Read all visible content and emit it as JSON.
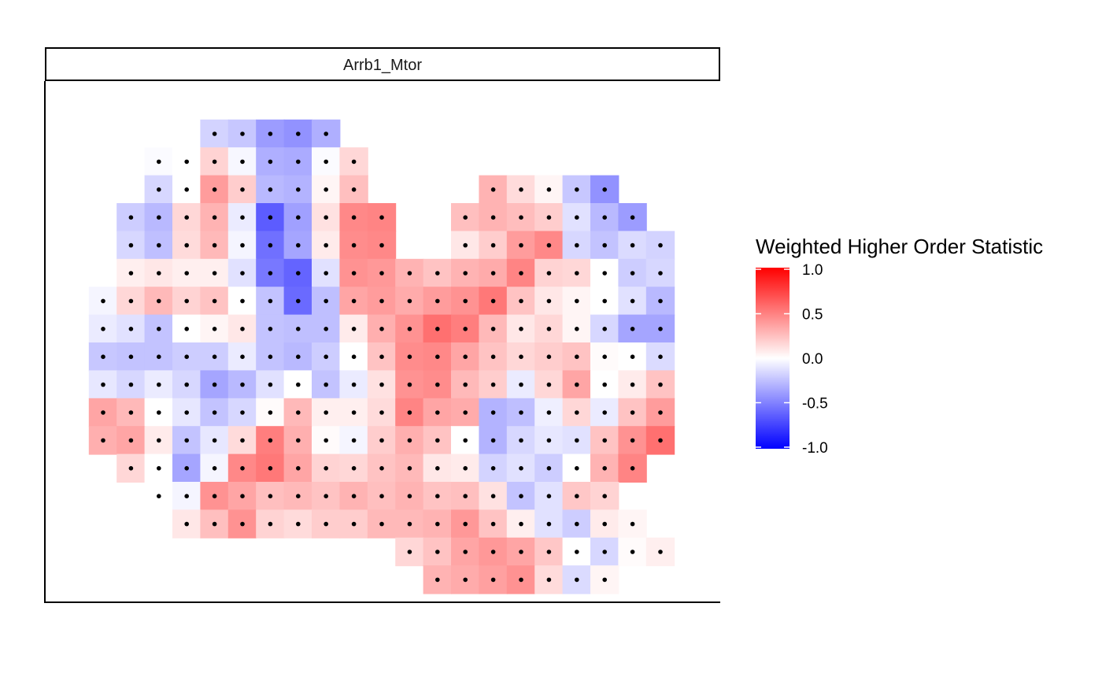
{
  "chart_data": {
    "type": "heatmap",
    "facet_label": "Arrb1_Mtor",
    "legend": {
      "title": "Weighted Higher Order Statistic",
      "ticks": [
        "1.0",
        "0.5",
        "0.0",
        "-0.5",
        "-1.0"
      ],
      "range": [
        -1.0,
        1.0
      ],
      "colors": {
        "low": "#0000FF",
        "mid": "#FFFFFF",
        "high": "#FF0000"
      },
      "placement": "right"
    },
    "grid_note": "Spatial spot map; rows listed top to bottom, each row gives column index (left to right) and value in [-1, 1].",
    "rows": [
      [
        [
          4,
          -0.22
        ],
        [
          5,
          -0.28
        ],
        [
          6,
          -0.5
        ],
        [
          7,
          -0.55
        ],
        [
          8,
          -0.4
        ]
      ],
      [
        [
          2,
          -0.02
        ],
        [
          3,
          0.0
        ],
        [
          4,
          0.22
        ],
        [
          5,
          -0.04
        ],
        [
          6,
          -0.4
        ],
        [
          7,
          -0.42
        ],
        [
          8,
          -0.02
        ],
        [
          9,
          0.2
        ]
      ],
      [
        [
          2,
          -0.2
        ],
        [
          3,
          0.0
        ],
        [
          4,
          0.5
        ],
        [
          5,
          0.25
        ],
        [
          6,
          -0.35
        ],
        [
          7,
          -0.38
        ],
        [
          8,
          0.05
        ],
        [
          9,
          0.32
        ],
        [
          14,
          0.38
        ],
        [
          15,
          0.18
        ],
        [
          16,
          0.05
        ],
        [
          17,
          -0.28
        ],
        [
          18,
          -0.55
        ]
      ],
      [
        [
          1,
          -0.25
        ],
        [
          2,
          -0.35
        ],
        [
          3,
          0.2
        ],
        [
          4,
          0.38
        ],
        [
          5,
          -0.1
        ],
        [
          6,
          -0.82
        ],
        [
          7,
          -0.48
        ],
        [
          8,
          0.15
        ],
        [
          9,
          0.6
        ],
        [
          10,
          0.62
        ],
        [
          13,
          0.32
        ],
        [
          14,
          0.38
        ],
        [
          15,
          0.33
        ],
        [
          16,
          0.25
        ],
        [
          17,
          -0.15
        ],
        [
          18,
          -0.35
        ],
        [
          19,
          -0.5
        ]
      ],
      [
        [
          1,
          -0.2
        ],
        [
          2,
          -0.32
        ],
        [
          3,
          0.18
        ],
        [
          4,
          0.35
        ],
        [
          5,
          -0.05
        ],
        [
          6,
          -0.72
        ],
        [
          7,
          -0.45
        ],
        [
          8,
          0.1
        ],
        [
          9,
          0.58
        ],
        [
          10,
          0.6
        ],
        [
          13,
          0.12
        ],
        [
          14,
          0.25
        ],
        [
          15,
          0.5
        ],
        [
          16,
          0.6
        ],
        [
          17,
          -0.2
        ],
        [
          18,
          -0.3
        ],
        [
          19,
          -0.18
        ],
        [
          20,
          -0.22
        ]
      ],
      [
        [
          1,
          0.08
        ],
        [
          2,
          0.12
        ],
        [
          3,
          0.08
        ],
        [
          4,
          0.08
        ],
        [
          5,
          -0.15
        ],
        [
          6,
          -0.68
        ],
        [
          7,
          -0.78
        ],
        [
          8,
          -0.15
        ],
        [
          9,
          0.55
        ],
        [
          10,
          0.52
        ],
        [
          11,
          0.38
        ],
        [
          12,
          0.3
        ],
        [
          13,
          0.38
        ],
        [
          14,
          0.42
        ],
        [
          15,
          0.62
        ],
        [
          16,
          0.22
        ],
        [
          17,
          0.2
        ],
        [
          18,
          0.0
        ],
        [
          19,
          -0.25
        ],
        [
          20,
          -0.2
        ]
      ],
      [
        [
          0,
          -0.05
        ],
        [
          1,
          0.2
        ],
        [
          2,
          0.35
        ],
        [
          3,
          0.22
        ],
        [
          4,
          0.3
        ],
        [
          5,
          0.0
        ],
        [
          6,
          -0.3
        ],
        [
          7,
          -0.75
        ],
        [
          8,
          -0.32
        ],
        [
          9,
          0.45
        ],
        [
          10,
          0.5
        ],
        [
          11,
          0.42
        ],
        [
          12,
          0.5
        ],
        [
          13,
          0.55
        ],
        [
          14,
          0.68
        ],
        [
          15,
          0.3
        ],
        [
          16,
          0.12
        ],
        [
          17,
          0.05
        ],
        [
          18,
          0.0
        ],
        [
          19,
          -0.15
        ],
        [
          20,
          -0.35
        ]
      ],
      [
        [
          0,
          -0.1
        ],
        [
          1,
          -0.15
        ],
        [
          2,
          -0.3
        ],
        [
          3,
          0.0
        ],
        [
          4,
          0.05
        ],
        [
          5,
          0.12
        ],
        [
          6,
          -0.3
        ],
        [
          7,
          -0.32
        ],
        [
          8,
          -0.32
        ],
        [
          9,
          0.1
        ],
        [
          10,
          0.4
        ],
        [
          11,
          0.55
        ],
        [
          12,
          0.72
        ],
        [
          13,
          0.65
        ],
        [
          14,
          0.35
        ],
        [
          15,
          0.12
        ],
        [
          16,
          0.2
        ],
        [
          17,
          0.05
        ],
        [
          18,
          -0.2
        ],
        [
          19,
          -0.45
        ],
        [
          20,
          -0.45
        ]
      ],
      [
        [
          0,
          -0.28
        ],
        [
          1,
          -0.3
        ],
        [
          2,
          -0.3
        ],
        [
          3,
          -0.25
        ],
        [
          4,
          -0.25
        ],
        [
          5,
          -0.1
        ],
        [
          6,
          -0.3
        ],
        [
          7,
          -0.35
        ],
        [
          8,
          -0.25
        ],
        [
          9,
          0.0
        ],
        [
          10,
          0.3
        ],
        [
          11,
          0.58
        ],
        [
          12,
          0.6
        ],
        [
          13,
          0.45
        ],
        [
          14,
          0.3
        ],
        [
          15,
          0.2
        ],
        [
          16,
          0.25
        ],
        [
          17,
          0.3
        ],
        [
          18,
          0.02
        ],
        [
          19,
          0.0
        ],
        [
          20,
          -0.18
        ]
      ],
      [
        [
          0,
          -0.12
        ],
        [
          1,
          -0.2
        ],
        [
          2,
          -0.1
        ],
        [
          3,
          -0.2
        ],
        [
          4,
          -0.45
        ],
        [
          5,
          -0.35
        ],
        [
          6,
          -0.15
        ],
        [
          7,
          0.0
        ],
        [
          8,
          -0.3
        ],
        [
          9,
          -0.1
        ],
        [
          10,
          0.15
        ],
        [
          11,
          0.55
        ],
        [
          12,
          0.58
        ],
        [
          13,
          0.35
        ],
        [
          14,
          0.25
        ],
        [
          15,
          -0.1
        ],
        [
          16,
          0.2
        ],
        [
          17,
          0.45
        ],
        [
          18,
          0.0
        ],
        [
          19,
          0.1
        ],
        [
          20,
          0.3
        ]
      ],
      [
        [
          0,
          0.45
        ],
        [
          1,
          0.35
        ],
        [
          2,
          0.0
        ],
        [
          3,
          -0.12
        ],
        [
          4,
          -0.3
        ],
        [
          5,
          -0.2
        ],
        [
          6,
          0.02
        ],
        [
          7,
          0.35
        ],
        [
          8,
          0.08
        ],
        [
          9,
          0.08
        ],
        [
          10,
          0.18
        ],
        [
          11,
          0.62
        ],
        [
          12,
          0.45
        ],
        [
          13,
          0.42
        ],
        [
          14,
          -0.38
        ],
        [
          15,
          -0.32
        ],
        [
          16,
          -0.08
        ],
        [
          17,
          0.2
        ],
        [
          18,
          -0.1
        ],
        [
          19,
          0.3
        ],
        [
          20,
          0.5
        ]
      ],
      [
        [
          0,
          0.4
        ],
        [
          1,
          0.45
        ],
        [
          2,
          0.1
        ],
        [
          3,
          -0.3
        ],
        [
          4,
          -0.12
        ],
        [
          5,
          0.18
        ],
        [
          6,
          0.65
        ],
        [
          7,
          0.4
        ],
        [
          8,
          0.02
        ],
        [
          9,
          -0.05
        ],
        [
          10,
          0.25
        ],
        [
          11,
          0.4
        ],
        [
          12,
          0.3
        ],
        [
          13,
          0.0
        ],
        [
          14,
          -0.38
        ],
        [
          15,
          -0.2
        ],
        [
          16,
          -0.12
        ],
        [
          17,
          -0.15
        ],
        [
          18,
          0.3
        ],
        [
          19,
          0.55
        ],
        [
          20,
          0.72
        ]
      ],
      [
        [
          1,
          0.2
        ],
        [
          2,
          0.0
        ],
        [
          3,
          -0.45
        ],
        [
          4,
          -0.05
        ],
        [
          5,
          0.6
        ],
        [
          6,
          0.68
        ],
        [
          7,
          0.45
        ],
        [
          8,
          0.22
        ],
        [
          9,
          0.2
        ],
        [
          10,
          0.3
        ],
        [
          11,
          0.35
        ],
        [
          12,
          0.12
        ],
        [
          13,
          0.1
        ],
        [
          14,
          -0.22
        ],
        [
          15,
          -0.15
        ],
        [
          16,
          -0.25
        ],
        [
          17,
          0.0
        ],
        [
          18,
          0.38
        ],
        [
          19,
          0.62
        ]
      ],
      [
        [
          2,
          0.0
        ],
        [
          3,
          -0.05
        ],
        [
          4,
          0.55
        ],
        [
          5,
          0.45
        ],
        [
          6,
          0.32
        ],
        [
          7,
          0.35
        ],
        [
          8,
          0.3
        ],
        [
          9,
          0.38
        ],
        [
          10,
          0.32
        ],
        [
          11,
          0.38
        ],
        [
          12,
          0.3
        ],
        [
          13,
          0.32
        ],
        [
          14,
          0.15
        ],
        [
          15,
          -0.3
        ],
        [
          16,
          -0.15
        ],
        [
          17,
          0.28
        ],
        [
          18,
          0.22
        ]
      ],
      [
        [
          3,
          0.12
        ],
        [
          4,
          0.32
        ],
        [
          5,
          0.55
        ],
        [
          6,
          0.22
        ],
        [
          7,
          0.18
        ],
        [
          8,
          0.25
        ],
        [
          9,
          0.25
        ],
        [
          10,
          0.35
        ],
        [
          11,
          0.35
        ],
        [
          12,
          0.38
        ],
        [
          13,
          0.52
        ],
        [
          14,
          0.3
        ],
        [
          15,
          0.08
        ],
        [
          16,
          -0.15
        ],
        [
          17,
          -0.25
        ],
        [
          18,
          0.1
        ],
        [
          19,
          0.05
        ]
      ],
      [
        [
          11,
          0.2
        ],
        [
          12,
          0.3
        ],
        [
          13,
          0.45
        ],
        [
          14,
          0.52
        ],
        [
          15,
          0.45
        ],
        [
          16,
          0.28
        ],
        [
          17,
          0.0
        ],
        [
          18,
          -0.2
        ],
        [
          19,
          0.02
        ],
        [
          20,
          0.08
        ]
      ],
      [
        [
          12,
          0.38
        ],
        [
          13,
          0.42
        ],
        [
          14,
          0.48
        ],
        [
          15,
          0.55
        ],
        [
          16,
          0.18
        ],
        [
          17,
          -0.18
        ],
        [
          18,
          0.05
        ]
      ]
    ]
  }
}
